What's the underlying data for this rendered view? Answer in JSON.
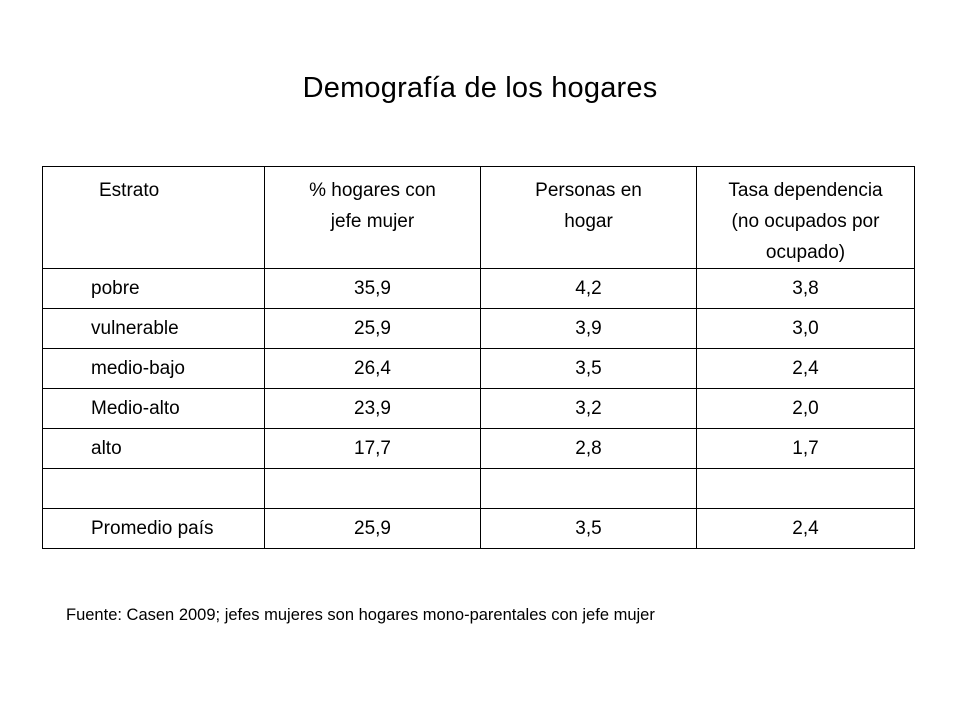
{
  "title": "Demografía de los hogares",
  "table": {
    "headers": [
      [
        "Estrato"
      ],
      [
        "% hogares con",
        "jefe mujer"
      ],
      [
        "Personas en",
        "hogar"
      ],
      [
        "Tasa dependencia",
        "(no ocupados por",
        "ocupado)"
      ]
    ],
    "rows": [
      [
        "pobre",
        "35,9",
        "4,2",
        "3,8"
      ],
      [
        "vulnerable",
        "25,9",
        "3,9",
        "3,0"
      ],
      [
        "medio-bajo",
        "26,4",
        "3,5",
        "2,4"
      ],
      [
        "Medio-alto",
        "23,9",
        "3,2",
        "2,0"
      ],
      [
        "alto",
        "17,7",
        "2,8",
        "1,7"
      ],
      [
        "",
        "",
        "",
        ""
      ],
      [
        "Promedio país",
        "25,9",
        "3,5",
        "2,4"
      ]
    ]
  },
  "footnote": "Fuente: Casen 2009; jefes mujeres son hogares mono-parentales con jefe mujer"
}
